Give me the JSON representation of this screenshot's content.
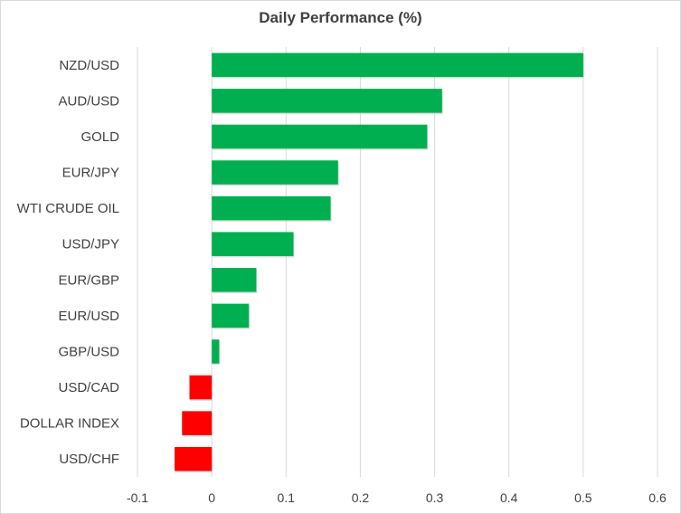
{
  "chart_data": {
    "type": "bar",
    "orientation": "horizontal",
    "title": "Daily Performance  (%)",
    "xlabel": "",
    "ylabel": "",
    "categories": [
      "NZD/USD",
      "AUD/USD",
      "GOLD",
      "EUR/JPY",
      "WTI CRUDE OIL",
      "USD/JPY",
      "EUR/GBP",
      "EUR/USD",
      "GBP/USD",
      "USD/CAD",
      "DOLLAR INDEX",
      "USD/CHF"
    ],
    "values": [
      0.5,
      0.31,
      0.29,
      0.17,
      0.16,
      0.11,
      0.06,
      0.05,
      0.01,
      -0.03,
      -0.04,
      -0.05
    ],
    "xlim": [
      -0.1,
      0.6
    ],
    "ticks": [
      -0.1,
      0,
      0.1,
      0.2,
      0.3,
      0.4,
      0.5,
      0.6
    ],
    "tick_labels": [
      "-0.1",
      "0",
      "0.1",
      "0.2",
      "0.3",
      "0.4",
      "0.5",
      "0.6"
    ],
    "grid": "vertical",
    "legend": "none",
    "colors": {
      "positive": "#00b050",
      "negative": "#ff0000"
    }
  }
}
